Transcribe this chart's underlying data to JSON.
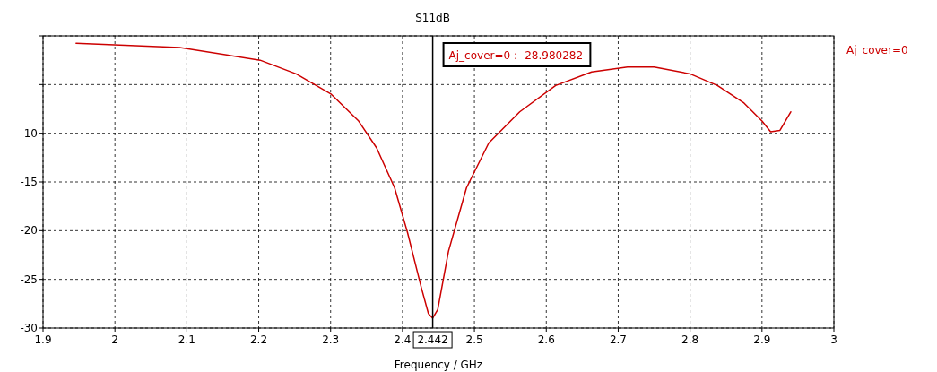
{
  "chart_data": {
    "type": "line",
    "title": "S11dB",
    "xlabel": "Frequency / GHz",
    "xlim": [
      1.9,
      3
    ],
    "xticks": [
      1.9,
      2,
      2.1,
      2.2,
      2.3,
      2.4,
      2.5,
      2.6,
      2.7,
      2.8,
      2.9,
      3
    ],
    "ylim": [
      -30,
      0
    ],
    "yticks": [
      -30,
      -25,
      -20,
      -15,
      -10,
      {
        "value": -5,
        "label": null
      },
      {
        "value": 0,
        "label": null
      }
    ],
    "grid": true,
    "legend": "right",
    "marker": "none",
    "line_style": "solid",
    "series": [
      {
        "name": "Aj_cover=0",
        "color": "#cc0000",
        "x": [
          1.946,
          2.09,
          2.202,
          2.252,
          2.301,
          2.339,
          2.364,
          2.389,
          2.407,
          2.426,
          2.436,
          2.442,
          2.449,
          2.464,
          2.489,
          2.52,
          2.563,
          2.613,
          2.663,
          2.713,
          2.75,
          2.8,
          2.838,
          2.875,
          2.9,
          2.912,
          2.925,
          2.94
        ],
        "values": [
          -0.75,
          -1.2,
          -2.5,
          -3.9,
          -6.0,
          -8.75,
          -11.5,
          -15.6,
          -20.2,
          -25.8,
          -28.5,
          -28.98,
          -28.1,
          -22.1,
          -15.6,
          -11.0,
          -7.8,
          -5.1,
          -3.7,
          -3.2,
          -3.2,
          -3.9,
          -5.1,
          -6.9,
          -8.75,
          -9.85,
          -9.7,
          -7.8
        ]
      }
    ],
    "ref_lines": [
      {
        "axis": "x",
        "value": 2.442,
        "label": "2.442",
        "color": "#000000"
      }
    ],
    "annotations": [
      "Aj_cover=0 : -28.980282"
    ]
  }
}
